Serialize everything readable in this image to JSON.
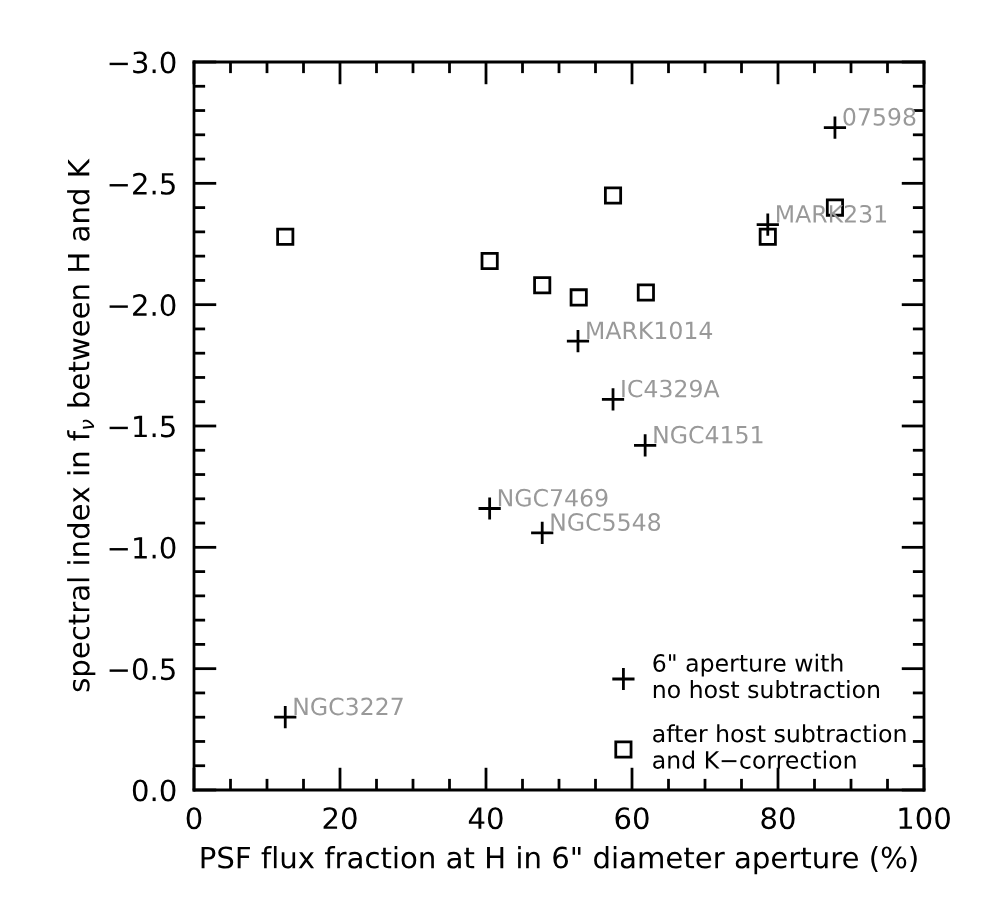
{
  "chart_data": {
    "type": "scatter",
    "xlabel": "PSF flux fraction at H in 6\" diameter aperture (%)",
    "ylabel": "spectral index in f$_{ν}$ between H and K",
    "xlim": [
      0,
      100
    ],
    "ylim": [
      0,
      -3
    ],
    "xticks": [
      0,
      {
        "value": 5,
        "label": null
      },
      {
        "value": 10,
        "label": null
      },
      {
        "value": 15,
        "label": null
      },
      20,
      {
        "value": 25,
        "label": null
      },
      {
        "value": 30,
        "label": null
      },
      {
        "value": 35,
        "label": null
      },
      40,
      {
        "value": 45,
        "label": null
      },
      {
        "value": 50,
        "label": null
      },
      {
        "value": 55,
        "label": null
      },
      60,
      {
        "value": 65,
        "label": null
      },
      {
        "value": 70,
        "label": null
      },
      {
        "value": 75,
        "label": null
      },
      80,
      {
        "value": 85,
        "label": null
      },
      {
        "value": 90,
        "label": null
      },
      {
        "value": 95,
        "label": null
      },
      100
    ],
    "yticks": [
      {
        "value": 0,
        "label": "0.0"
      },
      {
        "value": -0.1,
        "label": null
      },
      {
        "value": -0.2,
        "label": null
      },
      {
        "value": -0.3,
        "label": null
      },
      {
        "value": -0.4,
        "label": null
      },
      {
        "value": -0.5,
        "label": "−0.5"
      },
      {
        "value": -0.6,
        "label": null
      },
      {
        "value": -0.7,
        "label": null
      },
      {
        "value": -0.8,
        "label": null
      },
      {
        "value": -0.9,
        "label": null
      },
      {
        "value": -1,
        "label": "−1.0"
      },
      {
        "value": -1.1,
        "label": null
      },
      {
        "value": -1.2,
        "label": null
      },
      {
        "value": -1.3,
        "label": null
      },
      {
        "value": -1.4,
        "label": null
      },
      {
        "value": -1.5,
        "label": "−1.5"
      },
      {
        "value": -1.6,
        "label": null
      },
      {
        "value": -1.7,
        "label": null
      },
      {
        "value": -1.8,
        "label": null
      },
      {
        "value": -1.9,
        "label": null
      },
      {
        "value": -2,
        "label": "−2.0"
      },
      {
        "value": -2.1,
        "label": null
      },
      {
        "value": -2.2,
        "label": null
      },
      {
        "value": -2.3,
        "label": null
      },
      {
        "value": -2.4,
        "label": null
      },
      {
        "value": -2.5,
        "label": "−2.5"
      },
      {
        "value": -2.6,
        "label": null
      },
      {
        "value": -2.7,
        "label": null
      },
      {
        "value": -2.8,
        "label": null
      },
      {
        "value": -2.9,
        "label": null
      },
      {
        "value": -3,
        "label": "−3.0"
      }
    ],
    "legend": "bottom right",
    "series": [
      {
        "name": "6\" aperture with\nno host subtraction",
        "color": "#000000",
        "marker": "cross",
        "x": [
          12.5,
          40.5,
          47.7,
          61.8,
          57.4,
          52.6,
          78.6,
          87.8
        ],
        "values": [
          -0.3,
          -1.16,
          -1.06,
          -1.42,
          -1.61,
          -1.85,
          -2.33,
          -2.73
        ]
      },
      {
        "name": "after host subtraction\nand K−correction",
        "color": "#000000",
        "marker": "square",
        "x": [
          12.5,
          40.5,
          47.7,
          52.7,
          57.4,
          61.9,
          78.6,
          87.8
        ],
        "values": [
          -2.28,
          -2.18,
          -2.08,
          -2.03,
          -2.45,
          -2.05,
          -2.28,
          -2.4
        ]
      }
    ],
    "annotations": [
      {
        "text": "NGC3227",
        "x": 12.5,
        "y": -0.3
      },
      {
        "text": "NGC7469",
        "x": 40.5,
        "y": -1.16
      },
      {
        "text": "NGC5548",
        "x": 47.7,
        "y": -1.06
      },
      {
        "text": "NGC4151",
        "x": 61.8,
        "y": -1.42
      },
      {
        "text": "IC4329A",
        "x": 57.4,
        "y": -1.61
      },
      {
        "text": "MARK1014",
        "x": 52.6,
        "y": -1.85
      },
      {
        "text": "MARK231",
        "x": 78.6,
        "y": -2.33
      },
      {
        "text": "07598",
        "x": 87.8,
        "y": -2.73
      }
    ]
  }
}
